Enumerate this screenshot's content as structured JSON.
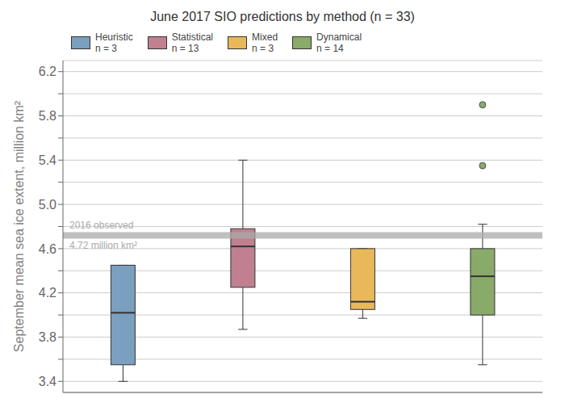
{
  "chart_data": {
    "type": "box",
    "title": "June 2017 SIO predictions by method  (n = 33)",
    "y_label": "September mean sea ice extent, million km²",
    "ylim": [
      3.3,
      6.3
    ],
    "yticks": [
      3.4,
      {
        "value": 3.6,
        "label": ""
      },
      3.8,
      {
        "value": 4.0,
        "label": ""
      },
      4.2,
      {
        "value": 4.4,
        "label": ""
      },
      4.6,
      {
        "value": 4.8,
        "label": ""
      },
      {
        "value": 5.0,
        "label": "5.0"
      },
      {
        "value": 5.2,
        "label": ""
      },
      5.4,
      {
        "value": 5.6,
        "label": ""
      },
      5.8,
      {
        "value": 6.0,
        "label": ""
      },
      6.2
    ],
    "grid": true,
    "legend": "upper left",
    "tick_labels": "y",
    "series": [
      {
        "name": "Heuristic",
        "n_label": "n = 3",
        "color": "#7b9fbe",
        "whislo": 3.4,
        "q1": 3.55,
        "med": 4.02,
        "q3": 4.45,
        "whishi": 4.45,
        "fliers": []
      },
      {
        "name": "Statistical",
        "n_label": "n = 13",
        "color": "#c08090",
        "whislo": 3.87,
        "q1": 4.25,
        "med": 4.62,
        "q3": 4.78,
        "whishi": 5.4,
        "fliers": []
      },
      {
        "name": "Mixed",
        "n_label": "n = 3",
        "color": "#e8b85a",
        "whislo": 3.97,
        "q1": 4.05,
        "med": 4.12,
        "q3": 4.6,
        "whishi": 4.6,
        "fliers": []
      },
      {
        "name": "Dynamical",
        "n_label": "n = 14",
        "color": "#8aaa6a",
        "whislo": 3.55,
        "q1": 4.0,
        "med": 4.35,
        "q3": 4.6,
        "whishi": 4.82,
        "fliers": [
          5.9,
          5.35
        ]
      }
    ],
    "reference_line": {
      "value": 4.72,
      "color": "#aaaaaa",
      "labels": [
        "2016 observed",
        "4.72 million km²"
      ]
    }
  }
}
